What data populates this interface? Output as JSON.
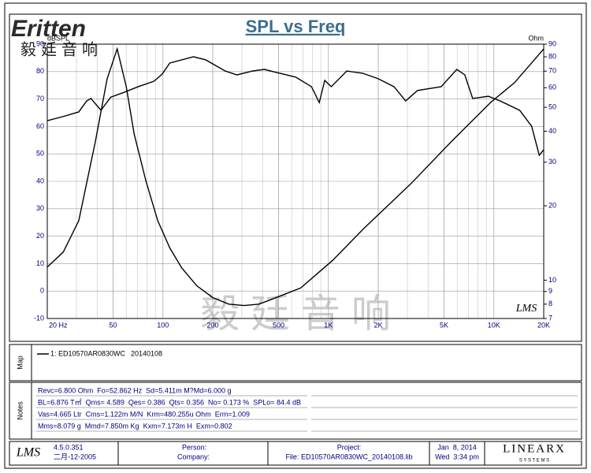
{
  "header": {
    "logo": "Eritten",
    "logo_cn": "毅廷音响"
  },
  "chart_data": {
    "type": "line",
    "title": "SPL vs Freq",
    "ylabel": "dBSPL",
    "y2label": "Ohm",
    "watermark": "毅 廷 音 响",
    "badge": "LMS",
    "log_x": true,
    "y2_log": true,
    "grid": true,
    "xlim": [
      20,
      20000
    ],
    "xticks": [
      {
        "value": 20,
        "label": "20 Hz"
      },
      50,
      100,
      200,
      500,
      {
        "value": 1000,
        "label": "1K"
      },
      {
        "value": 2000,
        "label": "2K"
      },
      {
        "value": 5000,
        "label": "5K"
      },
      {
        "value": 10000,
        "label": "10K"
      },
      {
        "value": 20000,
        "label": "20K"
      }
    ],
    "ylim": [
      -10,
      90
    ],
    "yticks": [
      -10,
      0,
      10,
      20,
      30,
      40,
      50,
      60,
      70,
      80,
      90
    ],
    "y2lim": [
      7,
      90
    ],
    "y2ticks": [
      7,
      8,
      9,
      10,
      20,
      30,
      40,
      50,
      60,
      70,
      80,
      90
    ],
    "series": [
      {
        "color": "#000000",
        "axis": "y",
        "x": [
          20,
          24.9,
          31,
          34.6,
          36.7,
          42.2,
          48.4,
          56.9,
          70.9,
          88.3,
          98.7,
          110,
          153,
          181,
          238,
          280,
          348,
          410,
          483,
          634,
          790,
          880,
          950,
          1040,
          1290,
          1610,
          2000,
          2490,
          2930,
          3450,
          4800,
          5970,
          6670,
          7440,
          9250,
          10900,
          14300,
          16900,
          18800,
          20000
        ],
        "values": [
          62.1,
          63.6,
          65.3,
          69.3,
          70.2,
          65.9,
          70.7,
          72.2,
          74.5,
          76.5,
          79.0,
          83.1,
          85.4,
          84.3,
          80.2,
          78.8,
          80.2,
          80.8,
          79.7,
          78.0,
          74.5,
          68.7,
          76.8,
          74.5,
          80.2,
          79.4,
          77.4,
          74.5,
          69.3,
          73.1,
          74.5,
          80.8,
          78.8,
          70.2,
          71.0,
          69.3,
          65.9,
          60.1,
          49.5,
          51.5
        ]
      },
      {
        "color": "#000000",
        "axis": "y2",
        "x": [
          20,
          25,
          31,
          39,
          46,
          52.9,
          60,
          67,
          79,
          93,
          110,
          130,
          160,
          200,
          250,
          310,
          380,
          440,
          680,
          880,
          1057,
          1640,
          3180,
          5500,
          9550,
          13300,
          20000
        ],
        "values": [
          11.3,
          13.0,
          17.4,
          36.2,
          65.2,
          86.1,
          60.6,
          39.0,
          25.1,
          17.4,
          13.5,
          11.2,
          9.5,
          8.5,
          8.0,
          7.9,
          8.0,
          8.3,
          9.3,
          10.8,
          12.0,
          16.2,
          24.7,
          36.2,
          52.3,
          62.8,
          86.1
        ]
      }
    ]
  },
  "map": {
    "label": "Map",
    "entry": "1: ED10570AR0830WC",
    "date": "20140108"
  },
  "notes": {
    "label": "Notes",
    "lines": [
      "Revc=6.800 Ohm  Fo=52.862 Hz  Sd=5.411m M?Md=6.000 g",
      "BL=6.876 T㎡  Qms= 4.589  Qes= 0.386  Qts= 0.356  No= 0.173 %  SPLo= 84.4 dB",
      "Vas=4.665 Ltr  Cms=1.122m M/N  Krm=480.255u Ohm  Erm=1.009",
      "Mms=8.079 g  Mmd=7.850m Kg  Kxm=7.173m H  Exm=0.802"
    ]
  },
  "footer": {
    "app": "LMS",
    "version": "4.5.0.351",
    "build_date": "二月-12-2005",
    "person": "Person:",
    "company": "Company:",
    "project": "Project:",
    "file": "File: ED10570AR0830WC_20140108.lib",
    "date": "Jan  8, 2014",
    "time": "Wed  3:34 pm",
    "brand": "LINEARX",
    "brand_sub": "S Y S T E M S"
  }
}
